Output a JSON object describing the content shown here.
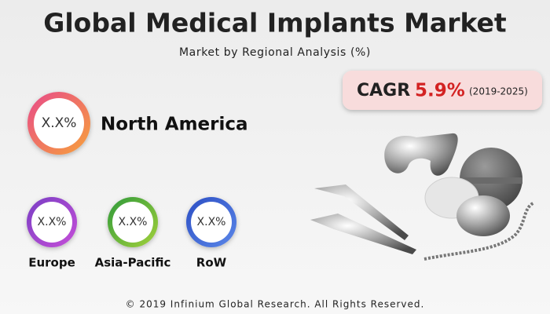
{
  "header": {
    "title": "Global Medical Implants Market",
    "subtitle": "Market by Regional Analysis (%)"
  },
  "cagr": {
    "label": "CAGR",
    "value": "5.9%",
    "period": "(2019-2025)"
  },
  "regions": [
    {
      "label": "North America",
      "value": "X.X%"
    },
    {
      "label": "Europe",
      "value": "X.X%"
    },
    {
      "label": "Asia-Pacific",
      "value": "X.X%"
    },
    {
      "label": "RoW",
      "value": "X.X%"
    }
  ],
  "footer": "© 2019 Infinium Global Research. All Rights Reserved."
}
